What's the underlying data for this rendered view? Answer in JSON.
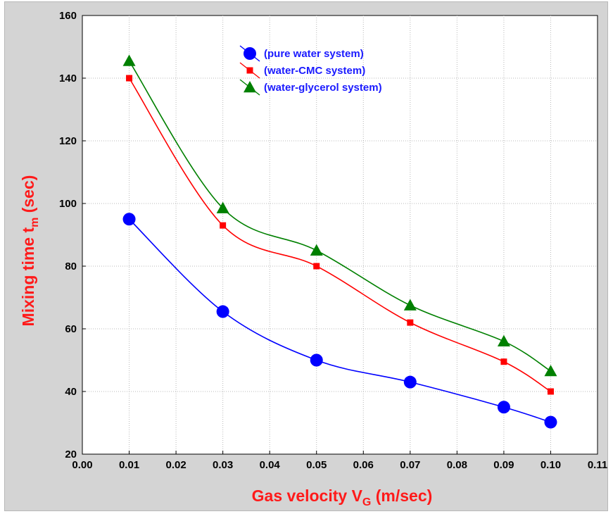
{
  "chart_data": {
    "type": "line",
    "xlabel": "Gas velocity V",
    "xlabel_sub": "G",
    "xlabel_unit": " (m/sec)",
    "ylabel": "Mixing time t",
    "ylabel_sub": "m",
    "ylabel_unit": " (sec)",
    "xlim": [
      0.0,
      0.11
    ],
    "ylim": [
      20,
      160
    ],
    "xticks": [
      "0.00",
      "0.01",
      "0.02",
      "0.03",
      "0.04",
      "0.05",
      "0.06",
      "0.07",
      "0.08",
      "0.09",
      "0.10",
      "0.11"
    ],
    "yticks": [
      "20",
      "40",
      "60",
      "80",
      "100",
      "120",
      "140",
      "160"
    ],
    "grid": true,
    "legend_position": "top-center",
    "x": [
      0.01,
      0.03,
      0.05,
      0.07,
      0.09,
      0.1
    ],
    "series": [
      {
        "name": "(pure water system)",
        "color": "#0000ff",
        "marker": "circle",
        "values": [
          95,
          65.5,
          50,
          43,
          35,
          30.2
        ]
      },
      {
        "name": "(water-CMC system)",
        "color": "#ff0000",
        "marker": "square",
        "values": [
          140,
          93,
          80,
          62,
          49.5,
          40
        ]
      },
      {
        "name": "(water-glycerol system)",
        "color": "#008000",
        "marker": "triangle",
        "values": [
          145.5,
          98.5,
          85,
          67.5,
          56,
          46.5
        ]
      }
    ]
  }
}
